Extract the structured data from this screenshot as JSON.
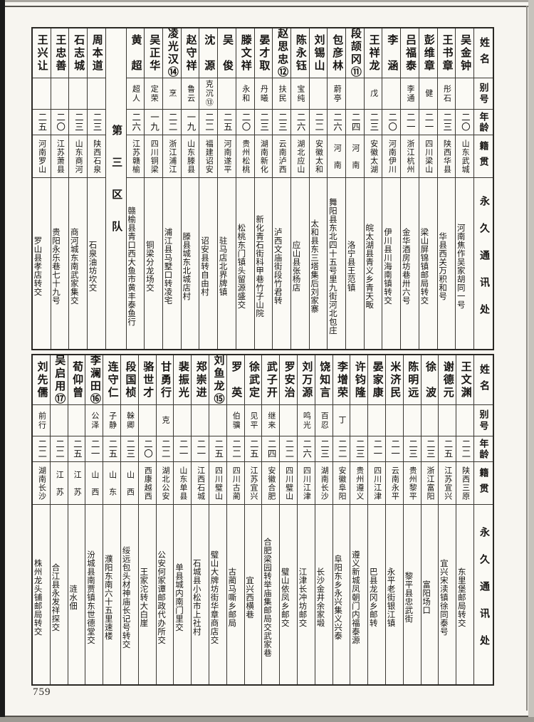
{
  "page": {
    "number": "759"
  },
  "headers": {
    "name": "姓名",
    "alias": "别号",
    "age": "年龄",
    "native": "籍贯",
    "address": "永久通讯处"
  },
  "top_table": {
    "unit_label": "第三区队",
    "unit_insert_index": 19,
    "entries": [
      {
        "name": "吴金钟",
        "alias": "",
        "age": "二〇",
        "native": "山东武城",
        "address": "河南焦作吴家胡同一号"
      },
      {
        "name": "王书章",
        "alias": "彤石",
        "age": "二三",
        "native": "陕西华县",
        "address": "华县西关万积和号"
      },
      {
        "name": "彭维章",
        "alias": "健",
        "age": "二一",
        "native": "四川梁山",
        "address": "梁山屏锦镇邮局转交"
      },
      {
        "name": "吕福泰",
        "alias": "李通",
        "age": "二一",
        "native": "浙江杭州",
        "address": "金华酒房坊巷卅六号"
      },
      {
        "name": "李　涵",
        "alias": "",
        "age": "二〇",
        "native": "河南伊川",
        "address": "伊川县川海南镇转交"
      },
      {
        "name": "王祥龙",
        "alias": "戊",
        "age": "二三",
        "native": "安徽太湖",
        "address": "皖太湖县青义乡青天畈"
      },
      {
        "name": "段颉冈⑪",
        "alias": "",
        "age": "二四",
        "native": "河　南",
        "address": "洛宁县王范镇"
      },
      {
        "name": "包彦林",
        "alias": "蔚亭",
        "age": "二六",
        "native": "河　南",
        "address": "舞阳县东北四十五号里九街河北包庄"
      },
      {
        "name": "刘锡山",
        "alias": "",
        "age": "二二",
        "native": "安徽太和",
        "address": "太和县东三塔集后刘家寨"
      },
      {
        "name": "陈永钰",
        "alias": "宝纯",
        "age": "二六",
        "native": "湖北应山",
        "address": "应山县张杨店"
      },
      {
        "name": "赵思忠⑫",
        "alias": "扶民",
        "age": "二三",
        "native": "云南泸西",
        "address": "泸西文庙街段竹君转"
      },
      {
        "name": "晏才取",
        "alias": "丹曦",
        "age": "二三",
        "native": "湖南新化",
        "address": "新化青石街科甲巷竹子山院"
      },
      {
        "name": "滕文祥",
        "alias": "永和",
        "age": "二〇",
        "native": "贵州松桃",
        "address": "松桃东门镇头留源盛交"
      },
      {
        "name": "吴　俊",
        "alias": "",
        "age": "二五",
        "native": "河南遂平",
        "address": "驻马店北界牌镇"
      },
      {
        "name": "沈　源",
        "alias": "克沉⑬",
        "age": "二二",
        "native": "福建诏安",
        "address": "诏安县转自由村"
      },
      {
        "name": "赵守祥",
        "alias": "鲁云",
        "age": "一九",
        "native": "山东滕县",
        "address": "滕县城东北城店村"
      },
      {
        "name": "凌光汉⑭",
        "alias": "烹",
        "age": "二二",
        "native": "浙江浦江",
        "address": "浦江县马墅口转凌宅"
      },
      {
        "name": "吴正华",
        "alias": "定荣",
        "age": "一九",
        "native": "四川铜梁",
        "address": "铜梁分龙场交"
      },
      {
        "name": "黄　超",
        "alias": "超人",
        "age": "二六",
        "native": "江苏赣榆",
        "address": "赣榆县青口西大鱼市黄丰泰鱼行"
      },
      {
        "name": "周本道",
        "alias": "",
        "age": "二三",
        "native": "陕西石泉",
        "address": "石泉油坊坎交"
      },
      {
        "name": "石志城",
        "alias": "",
        "age": "二三",
        "native": "山东商河",
        "address": "商河城东南武家集交"
      },
      {
        "name": "王忠善",
        "alias": "",
        "age": "二〇",
        "native": "江苏萧县",
        "address": "贵阳永乐巷七十九号"
      },
      {
        "name": "王兴让",
        "alias": "",
        "age": "二五",
        "native": "河南罗山",
        "address": "罗山县孝店转交"
      }
    ]
  },
  "bottom_table": {
    "entries": [
      {
        "name": "王文渊",
        "alias": "",
        "age": "二二",
        "native": "陕西三原",
        "address": "东里堡邮局转交"
      },
      {
        "name": "谢德元",
        "alias": "",
        "age": "二五",
        "native": "江苏宜兴",
        "address": "宜兴宋渎镇徐同泰号"
      },
      {
        "name": "徐　波",
        "alias": "",
        "age": "二三",
        "native": "浙江富阳",
        "address": "富阳场口"
      },
      {
        "name": "陈明远",
        "alias": "",
        "age": "二三",
        "native": "贵州黎平",
        "address": "黎平县忠武街"
      },
      {
        "name": "米济民",
        "alias": "",
        "age": "二一",
        "native": "云南永平",
        "address": "永平老街银江镇"
      },
      {
        "name": "晏家康",
        "alias": "",
        "age": "二一",
        "native": "四川江津",
        "address": "巴县龙冈乡邮转"
      },
      {
        "name": "许钧隆",
        "alias": "",
        "age": "二三",
        "native": "贵州遵义",
        "address": "遵义新城凤朝门内福泰源"
      },
      {
        "name": "李增荣",
        "alias": "丁",
        "age": "二二",
        "native": "安徽阜阳",
        "address": "阜阳东乡永兴集义兴泰"
      },
      {
        "name": "饶知言",
        "alias": "百忍",
        "age": "二三",
        "native": "湖南长沙",
        "address": "长沙金井余家塅"
      },
      {
        "name": "刘万源",
        "alias": "鸣光",
        "age": "二六",
        "native": "四川江津",
        "address": "江津长冲坊邮交"
      },
      {
        "name": "罗安治",
        "alias": "",
        "age": "二二",
        "native": "四川璧山",
        "address": "璧山依凤乡邮交"
      },
      {
        "name": "武子开",
        "alias": "继来",
        "age": "二四",
        "native": "安徽合肥",
        "address": "合肥梁园转举庙集邮局交武家巷"
      },
      {
        "name": "徐武定",
        "alias": "见平",
        "age": "二五",
        "native": "江苏宜兴",
        "address": "宜兴西横巷"
      },
      {
        "name": "罗　英",
        "alias": "伯骥",
        "age": "二二",
        "native": "四川古蔺",
        "address": "古蔺马嘶乡邮局"
      },
      {
        "name": "刘鱼龙⑮",
        "alias": "",
        "age": "二五",
        "native": "四川璧山",
        "address": "璧山大牌坊街华章商店交"
      },
      {
        "name": "郑崇进",
        "alias": "",
        "age": "二一",
        "native": "江西石城",
        "address": "石城县小松市上社村"
      },
      {
        "name": "裴振光",
        "alias": "",
        "age": "二一",
        "native": "山东单县",
        "address": "单县城内南门里交"
      },
      {
        "name": "甘勇行",
        "alias": "克",
        "age": "二二",
        "native": "湖北公安",
        "address": "公安何家谭邮政代办所交"
      },
      {
        "name": "骆世才",
        "alias": "",
        "age": "二〇",
        "native": "西康越西",
        "address": "王家沱转大白崖"
      },
      {
        "name": "段国桢",
        "alias": "榦卿",
        "age": "二三",
        "native": "山　西",
        "address": "绥远包头材神庙长记号转交"
      },
      {
        "name": "连守仁",
        "alias": "子静",
        "age": "二五",
        "native": "山　东",
        "address": "濮阳东南六十五里速楼"
      },
      {
        "name": "李澜田⑯",
        "alias": "公泽",
        "age": "二一",
        "native": "山　西",
        "address": "汾城县南贾镇东世德堂交"
      },
      {
        "name": "荀仰曾",
        "alias": "",
        "age": "二五",
        "native": "江　苏",
        "address": "涟水佃"
      },
      {
        "name": "吴启用⑰",
        "alias": "",
        "age": "二二",
        "native": "江　苏",
        "address": "合江县永发祥探交"
      },
      {
        "name": "刘先儒",
        "alias": "前行",
        "age": "二二",
        "native": "湖南长沙",
        "address": "株州龙头铺邮局转交"
      }
    ]
  }
}
